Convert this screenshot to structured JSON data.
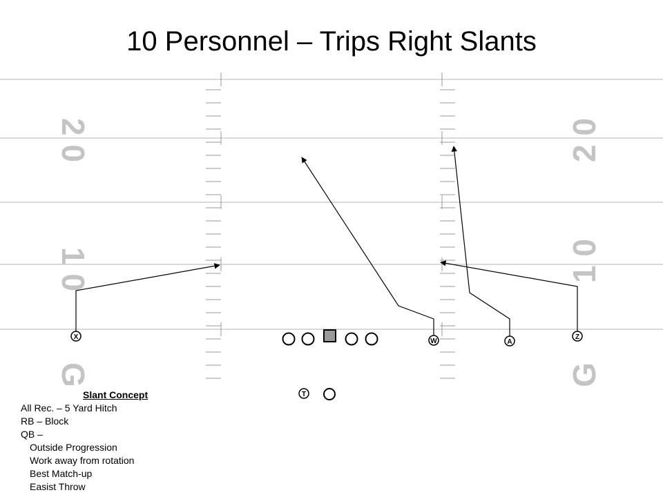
{
  "title": "10 Personnel – Trips Right Slants",
  "field": {
    "numbers_left": [
      "2 0",
      "1 0",
      "G"
    ],
    "numbers_right": [
      "2 0",
      "1 0",
      "G"
    ]
  },
  "players": {
    "x": "X",
    "w": "W",
    "a": "A",
    "z": "Z",
    "t": "T"
  },
  "notes": {
    "heading": "Slant Concept",
    "lines": [
      "All Rec. – 5 Yard Hitch",
      "RB – Block",
      "QB –"
    ],
    "qb_items": [
      "Outside Progression",
      "Work away from rotation",
      "Best Match-up",
      "Easist Throw"
    ]
  }
}
